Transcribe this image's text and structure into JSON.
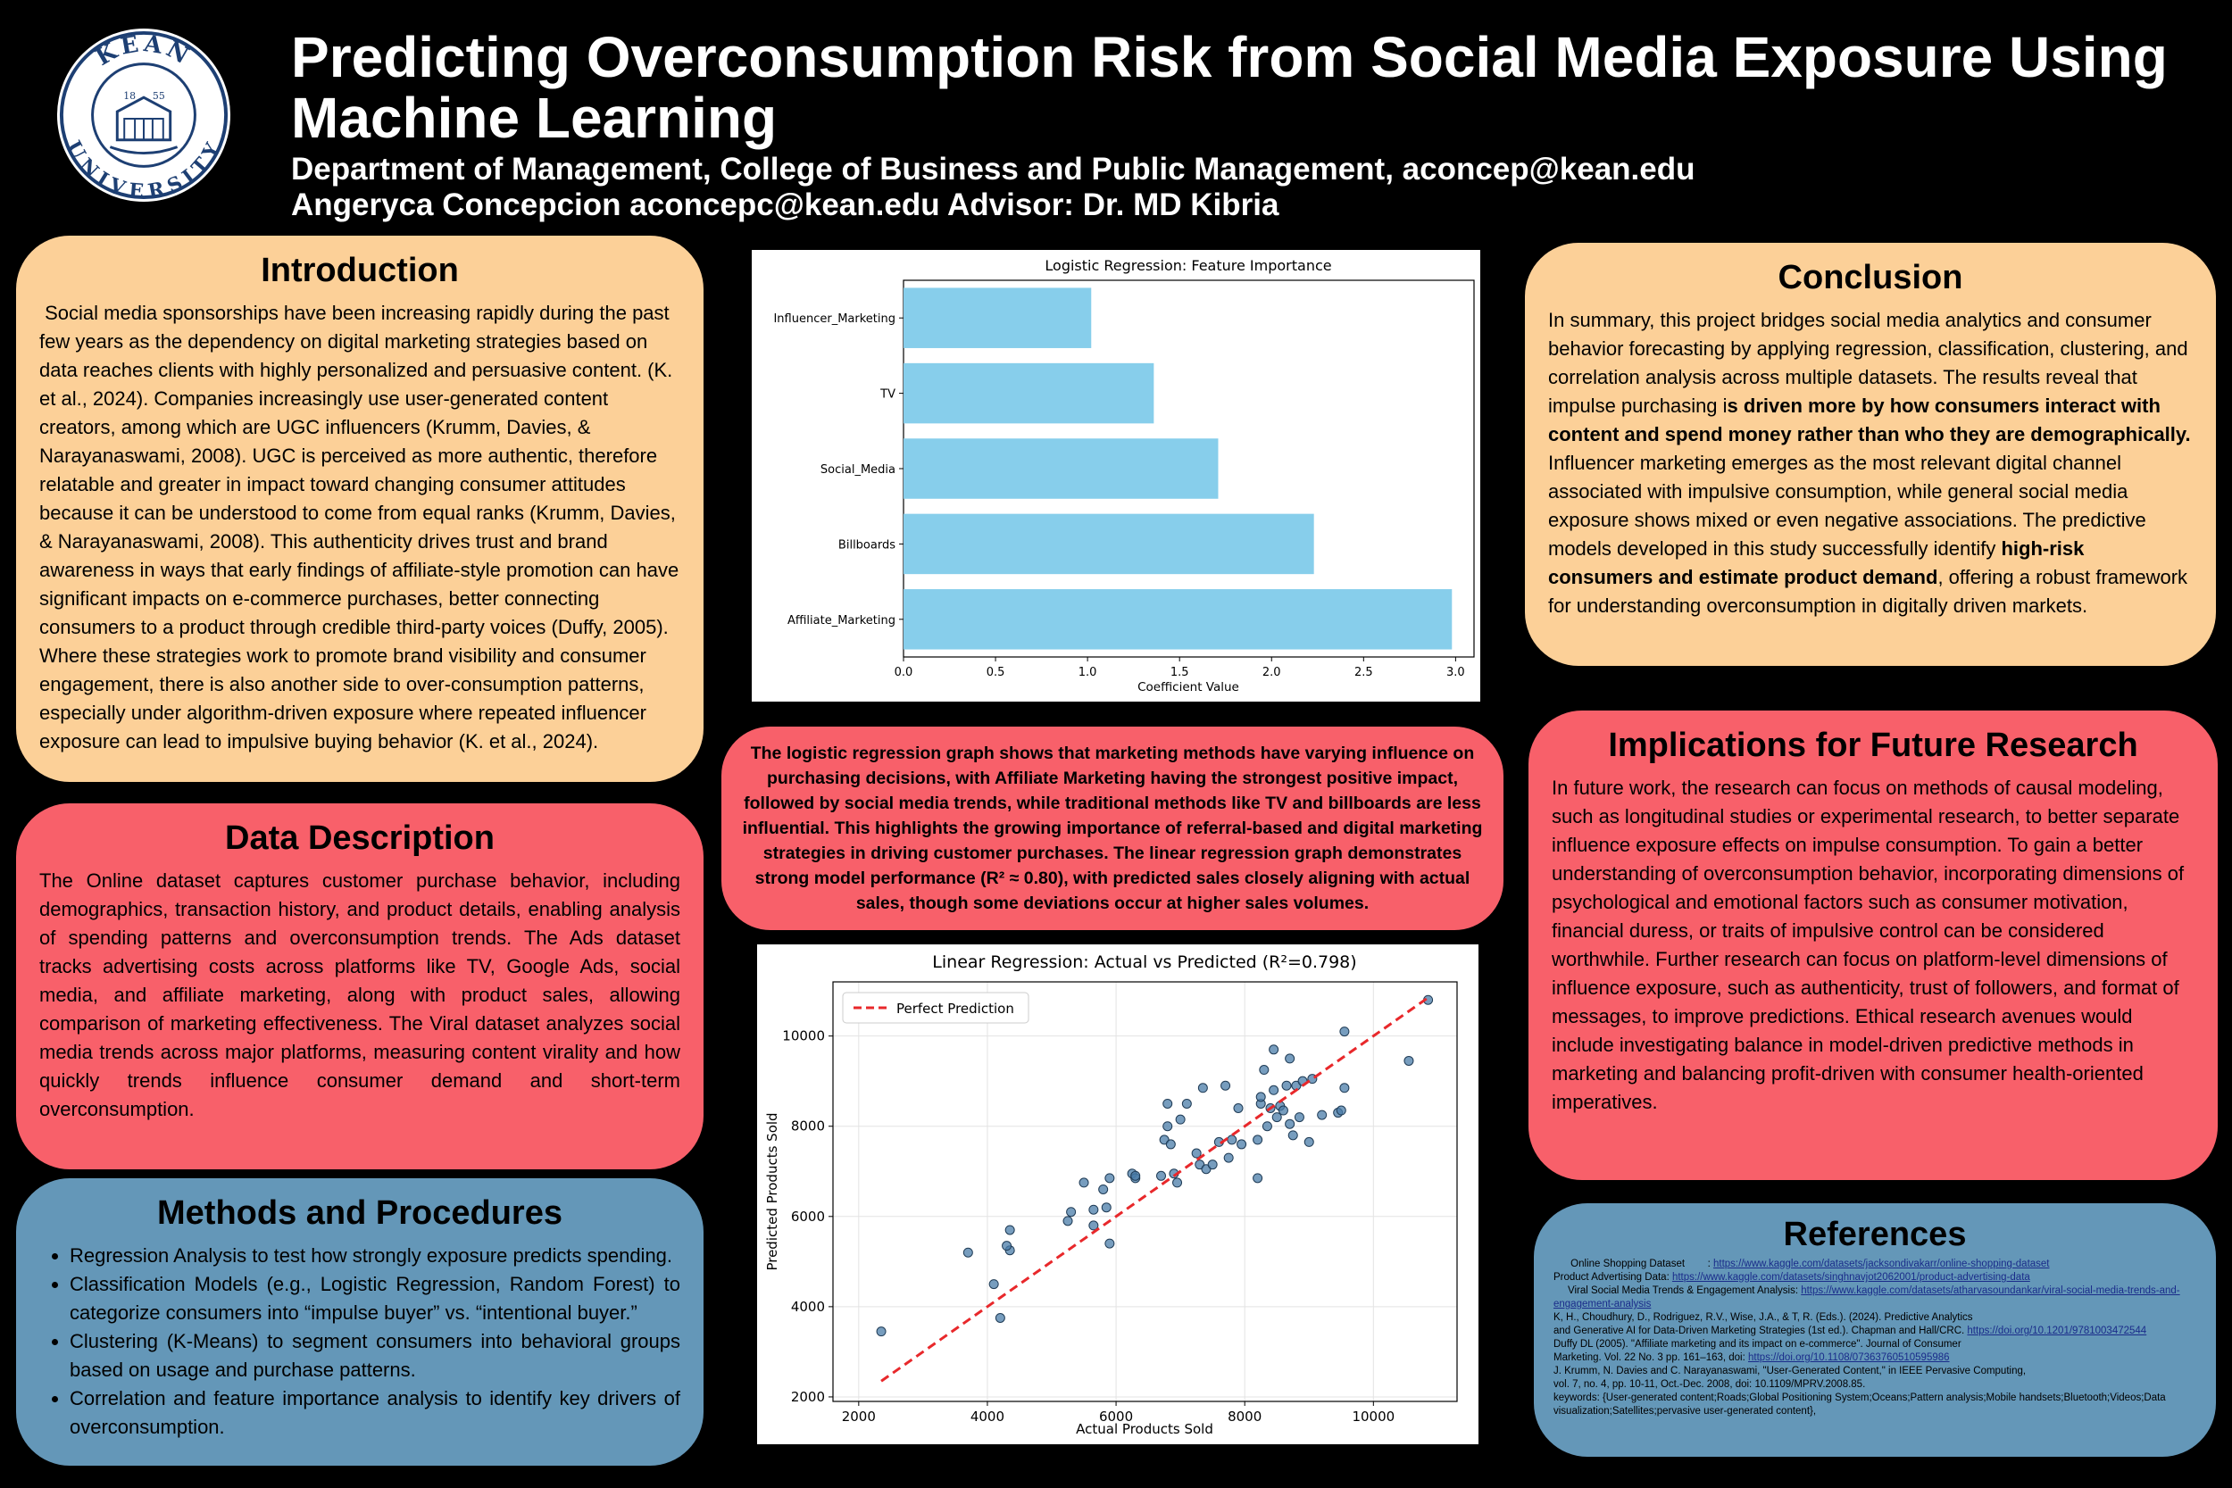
{
  "header": {
    "title": "Predicting Overconsumption Risk from Social Media Exposure Using Machine Learning",
    "department": "Department of Management, College of Business and Public Management, aconcep@kean.edu",
    "authors": "Angeryca Concepcion aconcepc@kean.edu Advisor: Dr. MD Kibria",
    "logo_top": "KEAN",
    "logo_bottom": "UNIVERSITY",
    "logo_year_left": "18",
    "logo_year_right": "55"
  },
  "introduction": {
    "heading": "Introduction",
    "text": " Social media sponsorships have been increasing rapidly during the past few years as the dependency on digital marketing strategies based on data reaches clients with highly personalized and persuasive content. (K. et al., 2024). Companies increasingly use user-generated content creators, among which are UGC influencers (Krumm, Davies, & Narayanaswami, 2008). UGC is perceived as more authentic, therefore relatable and greater in impact toward changing consumer attitudes because it can be understood to come from equal ranks (Krumm, Davies, & Narayanaswami, 2008). This authenticity drives trust and brand awareness in ways that early findings of affiliate-style promotion can have significant impacts on e-commerce purchases, better connecting consumers to a product through credible third-party voices (Duffy, 2005). Where these strategies work to promote brand visibility and consumer engagement, there is also another side to over-consumption patterns, especially under algorithm-driven exposure where repeated influencer exposure can lead to impulsive buying behavior (K. et al., 2024)."
  },
  "data_description": {
    "heading": "Data Description",
    "text": "The Online dataset captures customer purchase behavior, including demographics, transaction history, and product details, enabling analysis of spending patterns and overconsumption trends. The Ads dataset tracks advertising costs across platforms like TV, Google Ads, social media, and affiliate marketing, along with product sales, allowing comparison of marketing effectiveness. The Viral dataset analyzes social media trends across major platforms, measuring content virality and how quickly trends influence consumer demand and short-term overconsumption."
  },
  "methods": {
    "heading": "Methods and Procedures",
    "items": [
      "Regression Analysis to test how strongly exposure predicts spending.",
      "Classification Models (e.g., Logistic Regression, Random Forest) to categorize consumers into “impulse buyer” vs. “intentional buyer.”",
      "Clustering (K-Means) to segment consumers into behavioral groups based on usage and purchase patterns.",
      "Correlation and feature importance analysis to identify key drivers of overconsumption."
    ]
  },
  "caption": "The logistic regression graph shows that marketing methods have varying influence on purchasing decisions, with Affiliate Marketing having the strongest positive impact, followed by social media trends, while traditional methods like TV and billboards are less influential. This highlights the growing importance of referral-based and digital marketing strategies in driving customer purchases. The linear regression graph demonstrates strong model performance (R² ≈ 0.80), with predicted sales closely aligning with actual sales, though some deviations occur at higher sales volumes.",
  "conclusion": {
    "heading": "Conclusion",
    "text_1": "In summary, this project bridges social media analytics and consumer behavior forecasting by applying regression, classification, clustering, and correlation analysis across multiple datasets. The results reveal that impulse purchasing i",
    "bold_1": "s driven more by  how consumers interact with content and spend money  rather than who they are demographically.",
    "text_2": " Influencer marketing emerges as the most relevant digital channel associated with impulsive consumption, while general social media exposure shows mixed or even negative associations. The predictive models developed in this study successfully identify ",
    "bold_2": "high-risk consumers and estimate product demand",
    "text_3": ", offering a robust framework for understanding overconsumption in digitally driven markets."
  },
  "implications": {
    "heading": "Implications for Future Research",
    "text": "In future work, the research can focus on methods of causal modeling, such as longitudinal studies or experimental research, to better separate influence exposure effects on impulse consumption. To gain a better understanding of overconsumption behavior, incorporating dimensions of psychological and emotional factors such as consumer motivation, financial duress, or traits of impulsive control can be considered worthwhile. Further research can focus on platform-level dimensions of influence exposure, such as authenticity, trust of followers, and format of messages, to improve predictions. Ethical research avenues would include investigating balance in model-driven predictive methods in marketing and balancing profit-driven with consumer health-oriented imperatives."
  },
  "references": {
    "heading": "References",
    "lines": [
      {
        "text": "      Online Shopping Dataset        : ",
        "link": "https://www.kaggle.com/datasets/jacksondivakarr/online-shopping-dataset"
      },
      {
        "text": "Product Advertising Data: ",
        "link": "https://www.kaggle.com/datasets/singhnavjot2062001/product-advertising-data"
      },
      {
        "text": "     Viral Social Media Trends & Engagement Analysis: ",
        "link": "https://www.kaggle.com/datasets/atharvasoundankar/viral-social-media-trends-and-engagement-analysis"
      },
      {
        "text": "K, H., Choudhury, D., Rodriguez, R.V., Wise, J.A., & T, R. (Eds.). (2024). Predictive Analytics",
        "link": ""
      },
      {
        "text": "and Generative AI for Data-Driven Marketing Strategies (1st ed.). Chapman and Hall/CRC. ",
        "link": "https://doi.org/10.1201/9781003472544"
      },
      {
        "text": "Duffy DL (2005). \"Affiliate marketing and its impact on e-commerce\". Journal of Consumer",
        "link": ""
      },
      {
        "text": "Marketing. Vol. 22 No. 3 pp. 161–163, doi: ",
        "link": "https://doi.org/10.1108/07363760510595986"
      },
      {
        "text": "J. Krumm, N. Davies and C. Narayanaswami, \"User-Generated Content,\" in IEEE Pervasive Computing,",
        "link": ""
      },
      {
        "text": "vol. 7, no. 4, pp. 10-11, Oct.-Dec. 2008, doi: 10.1109/MPRV.2008.85.",
        "link": ""
      },
      {
        "text": "keywords: {User-generated content;Roads;Global Positioning System;Oceans;Pattern analysis;Mobile handsets;Bluetooth;Videos;Data visualization;Satellites;pervasive user-generated content},",
        "link": ""
      }
    ]
  },
  "chart_data": [
    {
      "type": "bar",
      "orientation": "horizontal",
      "title": "Logistic Regression: Feature Importance",
      "xlabel": "Coefficient Value",
      "ylabel": "",
      "categories": [
        "Influencer_Marketing",
        "TV",
        "Social_Media",
        "Billboards",
        "Affiliate_Marketing"
      ],
      "values": [
        1.02,
        1.36,
        1.71,
        2.23,
        2.98
      ],
      "xlim": [
        0,
        3.1
      ],
      "xticks": [
        "0.0",
        "0.5",
        "1.0",
        "1.5",
        "2.0",
        "2.5",
        "3.0"
      ],
      "color": "#87ceeb",
      "grid": false
    },
    {
      "type": "scatter",
      "title": "Linear Regression: Actual vs Predicted (R²=0.798)",
      "xlabel": "Actual Products Sold",
      "ylabel": "Predicted Products Sold",
      "xlim": [
        1600,
        11300
      ],
      "ylim": [
        1900,
        11200
      ],
      "xticks": [
        "2000",
        "4000",
        "6000",
        "8000",
        "10000"
      ],
      "yticks": [
        "2000",
        "4000",
        "6000",
        "8000",
        "10000"
      ],
      "legend": "Perfect Prediction",
      "legend_position": "top-left",
      "grid": true,
      "point_color": "#4a7ca8",
      "line_color": "#e8282b",
      "x": [
        2350,
        3700,
        4100,
        4200,
        4350,
        4350,
        4300,
        5250,
        5300,
        5500,
        5650,
        5650,
        5800,
        5900,
        5850,
        5900,
        6250,
        6300,
        6300,
        6700,
        6750,
        6800,
        6800,
        6850,
        6900,
        6950,
        7000,
        7100,
        7250,
        7300,
        7350,
        7400,
        7500,
        7600,
        7700,
        7750,
        7800,
        7900,
        7950,
        8200,
        8200,
        8250,
        8250,
        8300,
        8350,
        8400,
        8450,
        8450,
        8500,
        8550,
        8600,
        8650,
        8700,
        8700,
        8750,
        8800,
        8850,
        8900,
        9000,
        9050,
        9200,
        9450,
        9500,
        9550,
        9550,
        10550,
        10850
      ],
      "y": [
        3450,
        5200,
        4500,
        3750,
        5250,
        5700,
        5350,
        5900,
        6100,
        6750,
        5800,
        6150,
        6600,
        5400,
        6200,
        6850,
        6950,
        6850,
        6900,
        6900,
        7700,
        8000,
        8500,
        7600,
        6950,
        6750,
        8150,
        8500,
        7400,
        7150,
        8850,
        7050,
        7150,
        7650,
        8900,
        7300,
        7700,
        8400,
        7600,
        6850,
        7700,
        8500,
        8650,
        9250,
        8000,
        8400,
        8800,
        9700,
        8200,
        8450,
        8350,
        8900,
        8050,
        9500,
        7800,
        8900,
        8200,
        9000,
        7650,
        9050,
        8250,
        8300,
        8350,
        10100,
        8850,
        9450,
        10800
      ]
    }
  ]
}
